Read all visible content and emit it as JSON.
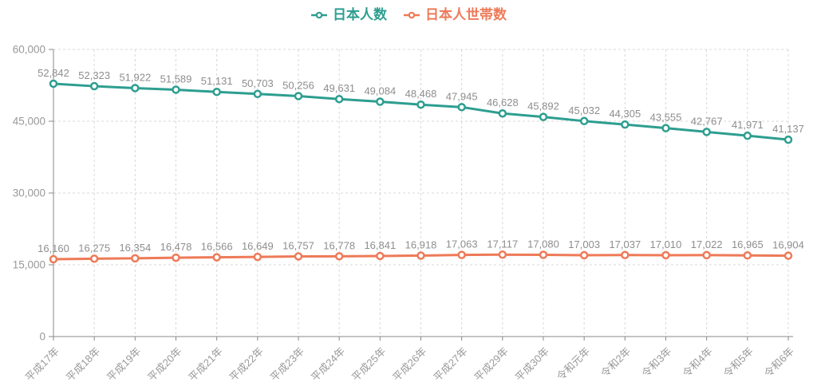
{
  "chart_data": {
    "type": "line",
    "categories": [
      "平成17年",
      "平成18年",
      "平成19年",
      "平成20年",
      "平成21年",
      "平成22年",
      "平成23年",
      "平成24年",
      "平成25年",
      "平成26年",
      "平成27年",
      "平成29年",
      "平成30年",
      "令和元年",
      "令和2年",
      "令和3年",
      "令和4年",
      "令和5年",
      "令和6年"
    ],
    "series": [
      {
        "name": "日本人数",
        "color": "#2d9e90",
        "values": [
          52842,
          52323,
          51922,
          51589,
          51131,
          50703,
          50256,
          49631,
          49084,
          48468,
          47945,
          46628,
          45892,
          45032,
          44305,
          43555,
          42767,
          41971,
          41137
        ]
      },
      {
        "name": "日本人世帯数",
        "color": "#ee7a58",
        "values": [
          16160,
          16275,
          16354,
          16478,
          16566,
          16649,
          16757,
          16778,
          16841,
          16918,
          17063,
          17117,
          17080,
          17003,
          17037,
          17010,
          17022,
          16965,
          16904
        ]
      }
    ],
    "title": "",
    "xlabel": "",
    "ylabel": "",
    "ylim": [
      0,
      60000
    ],
    "y_ticks": {
      "values": [
        0,
        15000,
        30000,
        45000,
        60000
      ],
      "labels": [
        "0",
        "15,000",
        "30,000",
        "45,000",
        "60,000"
      ]
    },
    "grid": true,
    "grid_style": "dashed",
    "legend_position": "top",
    "data_labels": true,
    "label_format": "thousands-comma",
    "colors": {
      "data_label": "#8e8e8e",
      "axis_label": "#999999",
      "axis_line": "#888888",
      "gridline": "#d8d8d8",
      "marker_fill": "#ffffff"
    }
  }
}
